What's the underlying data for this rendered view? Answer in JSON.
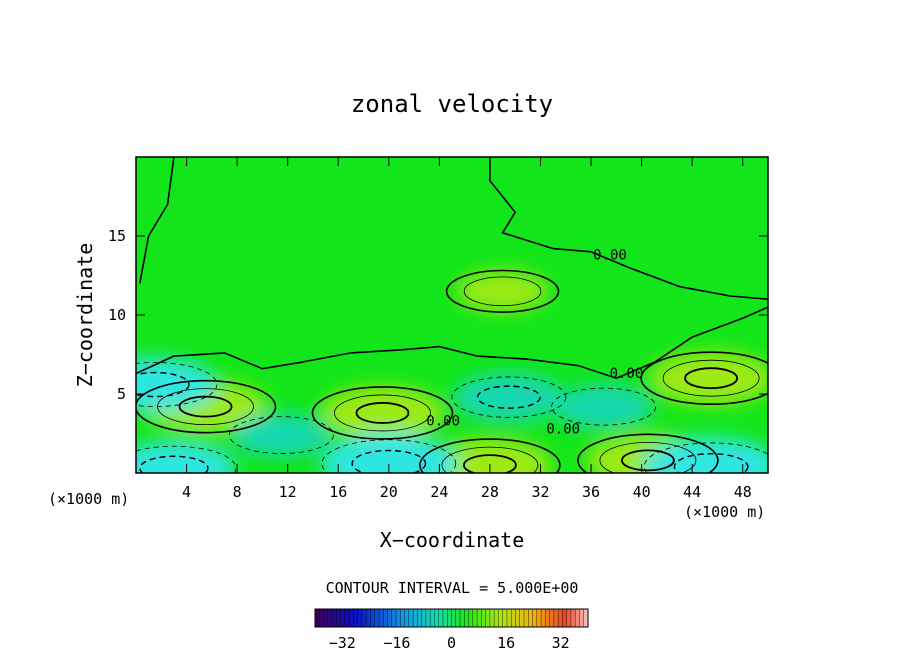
{
  "chart_data": {
    "type": "heatmap",
    "title": "zonal velocity",
    "xlabel": "X−coordinate",
    "ylabel": "Z−coordinate",
    "x_unit": "(×1000 m)",
    "xlim": [
      0,
      50
    ],
    "ylim": [
      0,
      20
    ],
    "x_ticks": [
      "4",
      "8",
      "12",
      "16",
      "20",
      "24",
      "28",
      "32",
      "36",
      "40",
      "44",
      "48"
    ],
    "y_ticks": [
      "5",
      "10",
      "15"
    ],
    "contour_labels": [
      {
        "text": "0.00",
        "x": 37.5,
        "z": 13.5
      },
      {
        "text": "0.00",
        "x": 38.8,
        "z": 6.0
      },
      {
        "text": "0.00",
        "x": 33.8,
        "z": 2.5
      },
      {
        "text": "0.00",
        "x": 24.3,
        "z": 3.0
      }
    ],
    "contour_interval": "CONTOUR INTERVAL = 5.000E+00",
    "colorbar": {
      "min": -40,
      "max": 40,
      "tick_labels": [
        "−32",
        "−16",
        "0",
        "16",
        "32"
      ],
      "tick_values": [
        -32,
        -16,
        0,
        16,
        32
      ]
    },
    "features": [
      {
        "type": "max",
        "x": 5.5,
        "z": 4.2,
        "value": 10
      },
      {
        "type": "max",
        "x": 19.5,
        "z": 3.8,
        "value": 10
      },
      {
        "type": "max",
        "x": 45.5,
        "z": 6.0,
        "value": 10
      },
      {
        "type": "max",
        "x": 28.0,
        "z": 0.5,
        "value": 10
      },
      {
        "type": "max",
        "x": 40.5,
        "z": 0.8,
        "value": 10
      },
      {
        "type": "max",
        "x": 29.0,
        "z": 11.5,
        "value": 5
      },
      {
        "type": "min",
        "x": 1.5,
        "z": 5.6,
        "value": -10
      },
      {
        "type": "min",
        "x": 3.0,
        "z": 0.3,
        "value": -10
      },
      {
        "type": "min",
        "x": 20.0,
        "z": 0.6,
        "value": -12
      },
      {
        "type": "min",
        "x": 29.5,
        "z": 4.8,
        "value": -8
      },
      {
        "type": "min",
        "x": 37.0,
        "z": 4.2,
        "value": -6
      },
      {
        "type": "min",
        "x": 45.5,
        "z": 0.4,
        "value": -12
      },
      {
        "type": "min",
        "x": 11.5,
        "z": 2.4,
        "value": -6
      }
    ]
  },
  "colors": {
    "background_field": "#12e61a",
    "positive": "#a3ea14",
    "negative": "#19d7b8",
    "strong_negative": "#2fe6ec"
  }
}
